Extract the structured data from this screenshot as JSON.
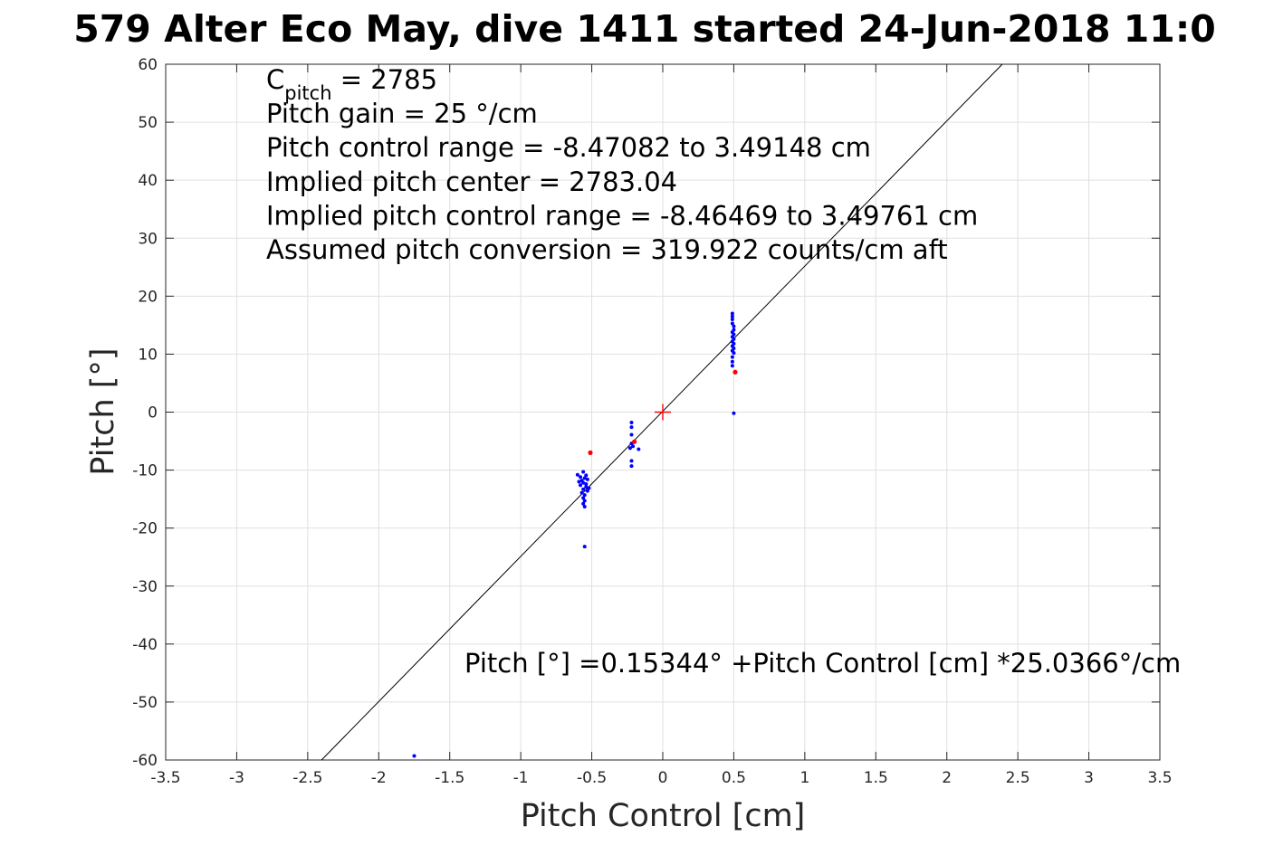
{
  "chart_data": {
    "type": "scatter",
    "title": "579 Alter Eco May, dive 1411 started 24-Jun-2018 11:0",
    "xlabel": "Pitch Control [cm]",
    "ylabel": "Pitch [°]",
    "xlim": [
      -3.5,
      3.5
    ],
    "ylim": [
      -60,
      60
    ],
    "grid": true,
    "x_ticks": [
      -3.5,
      -3,
      -2.5,
      -2,
      -1.5,
      -1,
      -0.5,
      0,
      0.5,
      1,
      1.5,
      2,
      2.5,
      3,
      3.5
    ],
    "x_tick_labels": [
      "-3.5",
      "-3",
      "-2.5",
      "-2",
      "-1.5",
      "-1",
      "-0.5",
      "0",
      "0.5",
      "1",
      "1.5",
      "2",
      "2.5",
      "3",
      "3.5"
    ],
    "y_ticks": [
      -60,
      -50,
      -40,
      -30,
      -20,
      -10,
      0,
      10,
      20,
      30,
      40,
      50,
      60
    ],
    "y_tick_labels": [
      "-60",
      "-50",
      "-40",
      "-30",
      "-20",
      "-10",
      "0",
      "10",
      "20",
      "30",
      "40",
      "50",
      "60"
    ],
    "annotation_lines": [
      {
        "main": "C",
        "sub": "pitch",
        "rest": " = 2785"
      },
      {
        "main": "Pitch gain = 25 °/cm"
      },
      {
        "main": "Pitch control range = -8.47082 to 3.49148 cm"
      },
      {
        "main": "Implied pitch center = 2783.04"
      },
      {
        "main": "Implied pitch control range = -8.46469 to 3.49761 cm"
      },
      {
        "main": "Assumed pitch conversion = 319.922 counts/cm aft"
      }
    ],
    "fit_label": "Pitch [°] =0.15344° +Pitch Control [cm] *25.0366°/cm",
    "fit_line": {
      "intercept": 0.15344,
      "slope": 25.0366,
      "color": "#000000"
    },
    "center_marker": {
      "x": 0,
      "y": 0,
      "color": "#ff0000",
      "shape": "plus"
    },
    "series": [
      {
        "color": "#0000ff",
        "points": [
          [
            0.49,
            17.0
          ],
          [
            0.49,
            16.5
          ],
          [
            0.49,
            16.0
          ],
          [
            0.49,
            15.3
          ],
          [
            0.5,
            14.8
          ],
          [
            0.5,
            14.2
          ],
          [
            0.49,
            13.8
          ],
          [
            0.5,
            13.4
          ],
          [
            0.49,
            13.0
          ],
          [
            0.5,
            12.6
          ],
          [
            0.49,
            12.2
          ],
          [
            0.5,
            11.8
          ],
          [
            0.49,
            11.4
          ],
          [
            0.5,
            11.0
          ],
          [
            0.49,
            10.6
          ],
          [
            0.5,
            10.2
          ],
          [
            0.49,
            9.5
          ],
          [
            0.49,
            8.7
          ],
          [
            0.49,
            8.0
          ],
          [
            0.5,
            -0.2
          ],
          [
            -0.22,
            -1.8
          ],
          [
            -0.22,
            -2.6
          ],
          [
            -0.22,
            -3.9
          ],
          [
            -0.22,
            -5.4
          ],
          [
            -0.21,
            -5.9
          ],
          [
            -0.23,
            -6.2
          ],
          [
            -0.17,
            -6.4
          ],
          [
            -0.22,
            -8.4
          ],
          [
            -0.22,
            -9.3
          ],
          [
            -0.6,
            -10.8
          ],
          [
            -0.58,
            -11.2
          ],
          [
            -0.56,
            -10.3
          ],
          [
            -0.54,
            -10.9
          ],
          [
            -0.55,
            -11.4
          ],
          [
            -0.57,
            -11.8
          ],
          [
            -0.53,
            -11.6
          ],
          [
            -0.56,
            -12.2
          ],
          [
            -0.58,
            -12.6
          ],
          [
            -0.54,
            -12.9
          ],
          [
            -0.56,
            -13.3
          ],
          [
            -0.53,
            -13.6
          ],
          [
            -0.57,
            -13.9
          ],
          [
            -0.55,
            -14.3
          ],
          [
            -0.56,
            -14.8
          ],
          [
            -0.55,
            -15.3
          ],
          [
            -0.56,
            -15.8
          ],
          [
            -0.55,
            -16.3
          ],
          [
            -0.54,
            -12.4
          ],
          [
            -0.52,
            -13.1
          ],
          [
            -0.59,
            -12.0
          ],
          [
            -0.55,
            -23.2
          ],
          [
            -1.75,
            -59.3
          ]
        ]
      },
      {
        "color": "#ff0000",
        "points": [
          [
            0.51,
            6.9
          ],
          [
            -0.51,
            -7.0
          ],
          [
            -0.2,
            -5.1
          ]
        ]
      }
    ]
  }
}
